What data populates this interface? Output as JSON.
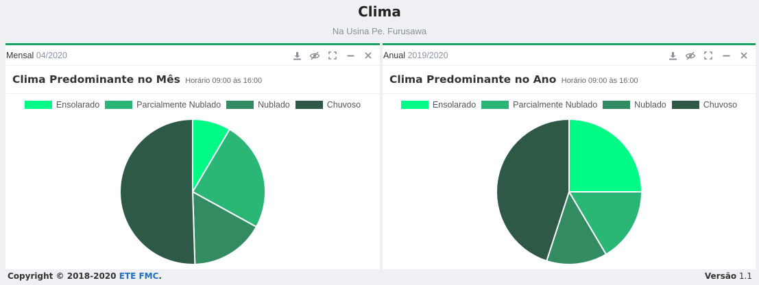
{
  "page": {
    "title": "Clima",
    "subtitle": "Na Usina Pe. Furusawa"
  },
  "colors": {
    "accent": "#1aa260",
    "ensolarado": "#00fa86",
    "parcialmente_nublado": "#2ab675",
    "nublado": "#338b62",
    "chuvoso": "#2e5947"
  },
  "panels": [
    {
      "name": "Mensal",
      "period": "04/2020",
      "chart_title": "Clima Predominante no Mês",
      "chart_note": "Horário 09:00 às 16:00",
      "tools": [
        "download-icon",
        "eye-slash-icon",
        "expand-icon",
        "minimize-icon",
        "close-icon"
      ]
    },
    {
      "name": "Anual",
      "period": "2019/2020",
      "chart_title": "Clima Predominante no Ano",
      "chart_note": "Horário 09:00 às 16:00",
      "tools": [
        "download-icon",
        "eye-slash-icon",
        "expand-icon",
        "minimize-icon",
        "close-icon"
      ]
    }
  ],
  "legend": [
    "Ensolarado",
    "Parcialmente Nublado",
    "Nublado",
    "Chuvoso"
  ],
  "chart_data": [
    {
      "type": "pie",
      "title": "Clima Predominante no Mês",
      "subtitle": "Horário 09:00 às 16:00",
      "categories": [
        "Ensolarado",
        "Parcialmente Nublado",
        "Nublado",
        "Chuvoso"
      ],
      "values": [
        8.5,
        24.5,
        16.5,
        50.5
      ],
      "legend": "top"
    },
    {
      "type": "pie",
      "title": "Clima Predominante no Ano",
      "subtitle": "Horário 09:00 às 16:00",
      "categories": [
        "Ensolarado",
        "Parcialmente Nublado",
        "Nublado",
        "Chuvoso"
      ],
      "values": [
        25,
        16.5,
        13.5,
        45
      ],
      "legend": "top"
    }
  ],
  "footer": {
    "copyright": "Copyright © 2018-2020",
    "org": "ETE FMC",
    "period_char": ".",
    "version_label": "Versão",
    "version": "1.1"
  }
}
